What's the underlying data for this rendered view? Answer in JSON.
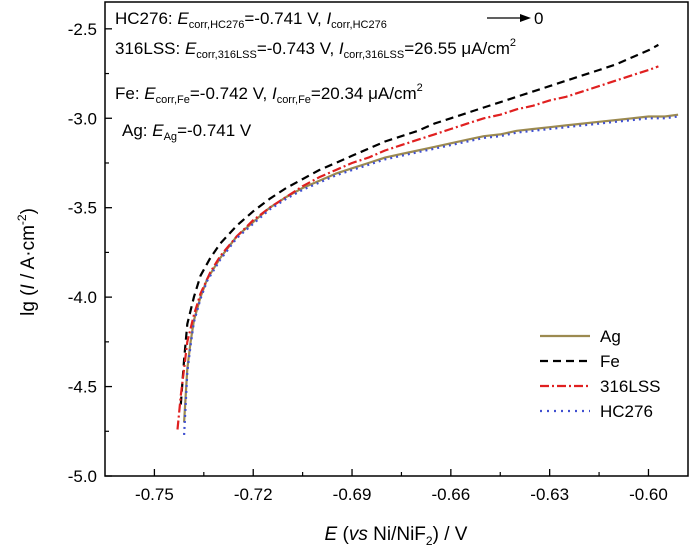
{
  "chart_data": {
    "type": "line",
    "xlabel": {
      "italic": "E",
      "pre": " (",
      "italic2": "vs",
      "mid": " Ni/NiF",
      "sub": "2",
      "post": ") / V"
    },
    "ylabel": {
      "pre": "lg (",
      "italic": "I",
      "mid": " / A·cm",
      "sup": "-2",
      "post": ")"
    },
    "xlim": [
      -0.765,
      -0.588
    ],
    "ylim": [
      -5.0,
      -2.35
    ],
    "xticks": [
      "-0.75",
      "-0.72",
      "-0.69",
      "-0.66",
      "-0.63",
      "-0.60"
    ],
    "xtick_values": [
      -0.75,
      -0.72,
      -0.69,
      -0.66,
      -0.63,
      -0.6
    ],
    "yticks": [
      "-2.5",
      "-3.0",
      "-3.5",
      "-4.0",
      "-4.5",
      "-5.0"
    ],
    "ytick_values": [
      -2.5,
      -3.0,
      -3.5,
      -4.0,
      -4.5,
      -5.0
    ],
    "grid": false,
    "legend_position": "bottom-right",
    "annotations": {
      "hc276": {
        "a": "HC276: ",
        "b": "E",
        "c": "corr,HC276",
        "d": "=-0.741 V, ",
        "e": "I",
        "f": "corr,HC276",
        "g": "0"
      },
      "lss": {
        "a": "316LSS: ",
        "b": "E",
        "c": "corr,316LSS",
        "d": "=-0.743 V, ",
        "e": "I",
        "f": "corr,316LSS",
        "g": "=26.55 μA/cm",
        "h": "2"
      },
      "fe": {
        "a": "Fe: ",
        "b": "E",
        "c": "corr,Fe",
        "d": "=-0.742 V, ",
        "e": "I",
        "f": "corr,Fe",
        "g": "=20.34 μA/cm",
        "h": "2"
      },
      "ag": {
        "a": "Ag: ",
        "b": "E",
        "c": "Ag",
        "d": "=-0.741 V"
      }
    },
    "series": [
      {
        "name": "Ag",
        "color": "#9c8a50",
        "dash": "solid",
        "points": [
          [
            -0.741,
            -4.7
          ],
          [
            -0.7405,
            -4.55
          ],
          [
            -0.74,
            -4.4
          ],
          [
            -0.739,
            -4.25
          ],
          [
            -0.738,
            -4.13
          ],
          [
            -0.736,
            -4.0
          ],
          [
            -0.734,
            -3.9
          ],
          [
            -0.73,
            -3.78
          ],
          [
            -0.725,
            -3.66
          ],
          [
            -0.72,
            -3.58
          ],
          [
            -0.715,
            -3.5
          ],
          [
            -0.71,
            -3.44
          ],
          [
            -0.705,
            -3.39
          ],
          [
            -0.7,
            -3.35
          ],
          [
            -0.695,
            -3.31
          ],
          [
            -0.69,
            -3.28
          ],
          [
            -0.685,
            -3.25
          ],
          [
            -0.68,
            -3.22
          ],
          [
            -0.675,
            -3.2
          ],
          [
            -0.67,
            -3.18
          ],
          [
            -0.665,
            -3.16
          ],
          [
            -0.66,
            -3.14
          ],
          [
            -0.655,
            -3.12
          ],
          [
            -0.65,
            -3.1
          ],
          [
            -0.645,
            -3.09
          ],
          [
            -0.64,
            -3.07
          ],
          [
            -0.635,
            -3.06
          ],
          [
            -0.63,
            -3.05
          ],
          [
            -0.625,
            -3.04
          ],
          [
            -0.62,
            -3.03
          ],
          [
            -0.615,
            -3.02
          ],
          [
            -0.61,
            -3.01
          ],
          [
            -0.605,
            -3.0
          ],
          [
            -0.6,
            -2.99
          ],
          [
            -0.595,
            -2.99
          ],
          [
            -0.591,
            -2.98
          ]
        ]
      },
      {
        "name": "Fe",
        "color": "#000000",
        "dash": "dashed",
        "points": [
          [
            -0.742,
            -4.6
          ],
          [
            -0.741,
            -4.35
          ],
          [
            -0.74,
            -4.15
          ],
          [
            -0.738,
            -4.0
          ],
          [
            -0.736,
            -3.88
          ],
          [
            -0.733,
            -3.78
          ],
          [
            -0.73,
            -3.7
          ],
          [
            -0.725,
            -3.6
          ],
          [
            -0.72,
            -3.52
          ],
          [
            -0.715,
            -3.45
          ],
          [
            -0.71,
            -3.39
          ],
          [
            -0.705,
            -3.34
          ],
          [
            -0.7,
            -3.29
          ],
          [
            -0.695,
            -3.25
          ],
          [
            -0.69,
            -3.21
          ],
          [
            -0.685,
            -3.17
          ],
          [
            -0.68,
            -3.13
          ],
          [
            -0.675,
            -3.1
          ],
          [
            -0.67,
            -3.07
          ],
          [
            -0.665,
            -3.03
          ],
          [
            -0.66,
            -3.0
          ],
          [
            -0.655,
            -2.97
          ],
          [
            -0.65,
            -2.94
          ],
          [
            -0.645,
            -2.91
          ],
          [
            -0.64,
            -2.88
          ],
          [
            -0.635,
            -2.85
          ],
          [
            -0.63,
            -2.82
          ],
          [
            -0.625,
            -2.79
          ],
          [
            -0.62,
            -2.76
          ],
          [
            -0.615,
            -2.73
          ],
          [
            -0.61,
            -2.7
          ],
          [
            -0.605,
            -2.66
          ],
          [
            -0.6,
            -2.62
          ],
          [
            -0.597,
            -2.59
          ]
        ]
      },
      {
        "name": "316LSS",
        "color": "#e02020",
        "dash": "dashdot",
        "points": [
          [
            -0.743,
            -4.74
          ],
          [
            -0.742,
            -4.55
          ],
          [
            -0.741,
            -4.4
          ],
          [
            -0.74,
            -4.25
          ],
          [
            -0.738,
            -4.1
          ],
          [
            -0.736,
            -3.98
          ],
          [
            -0.733,
            -3.86
          ],
          [
            -0.73,
            -3.77
          ],
          [
            -0.725,
            -3.66
          ],
          [
            -0.72,
            -3.57
          ],
          [
            -0.715,
            -3.5
          ],
          [
            -0.71,
            -3.44
          ],
          [
            -0.705,
            -3.38
          ],
          [
            -0.7,
            -3.33
          ],
          [
            -0.695,
            -3.29
          ],
          [
            -0.69,
            -3.25
          ],
          [
            -0.685,
            -3.22
          ],
          [
            -0.68,
            -3.18
          ],
          [
            -0.675,
            -3.15
          ],
          [
            -0.67,
            -3.12
          ],
          [
            -0.665,
            -3.09
          ],
          [
            -0.66,
            -3.06
          ],
          [
            -0.655,
            -3.03
          ],
          [
            -0.65,
            -3.0
          ],
          [
            -0.645,
            -2.98
          ],
          [
            -0.64,
            -2.95
          ],
          [
            -0.635,
            -2.93
          ],
          [
            -0.63,
            -2.9
          ],
          [
            -0.625,
            -2.88
          ],
          [
            -0.62,
            -2.85
          ],
          [
            -0.615,
            -2.82
          ],
          [
            -0.61,
            -2.79
          ],
          [
            -0.605,
            -2.76
          ],
          [
            -0.6,
            -2.73
          ],
          [
            -0.597,
            -2.71
          ]
        ]
      },
      {
        "name": "HC276",
        "color": "#4050d0",
        "dash": "dotted",
        "points": [
          [
            -0.741,
            -4.77
          ],
          [
            -0.7405,
            -4.6
          ],
          [
            -0.74,
            -4.42
          ],
          [
            -0.739,
            -4.27
          ],
          [
            -0.738,
            -4.14
          ],
          [
            -0.736,
            -4.01
          ],
          [
            -0.734,
            -3.91
          ],
          [
            -0.73,
            -3.79
          ],
          [
            -0.725,
            -3.67
          ],
          [
            -0.72,
            -3.59
          ],
          [
            -0.715,
            -3.51
          ],
          [
            -0.71,
            -3.45
          ],
          [
            -0.705,
            -3.4
          ],
          [
            -0.7,
            -3.36
          ],
          [
            -0.695,
            -3.32
          ],
          [
            -0.69,
            -3.29
          ],
          [
            -0.685,
            -3.26
          ],
          [
            -0.68,
            -3.23
          ],
          [
            -0.675,
            -3.21
          ],
          [
            -0.67,
            -3.19
          ],
          [
            -0.665,
            -3.17
          ],
          [
            -0.66,
            -3.15
          ],
          [
            -0.655,
            -3.13
          ],
          [
            -0.65,
            -3.11
          ],
          [
            -0.645,
            -3.1
          ],
          [
            -0.64,
            -3.08
          ],
          [
            -0.635,
            -3.07
          ],
          [
            -0.63,
            -3.06
          ],
          [
            -0.625,
            -3.05
          ],
          [
            -0.62,
            -3.04
          ],
          [
            -0.615,
            -3.03
          ],
          [
            -0.61,
            -3.02
          ],
          [
            -0.605,
            -3.01
          ],
          [
            -0.6,
            -3.0
          ],
          [
            -0.595,
            -3.0
          ],
          [
            -0.591,
            -2.99
          ]
        ]
      }
    ]
  }
}
